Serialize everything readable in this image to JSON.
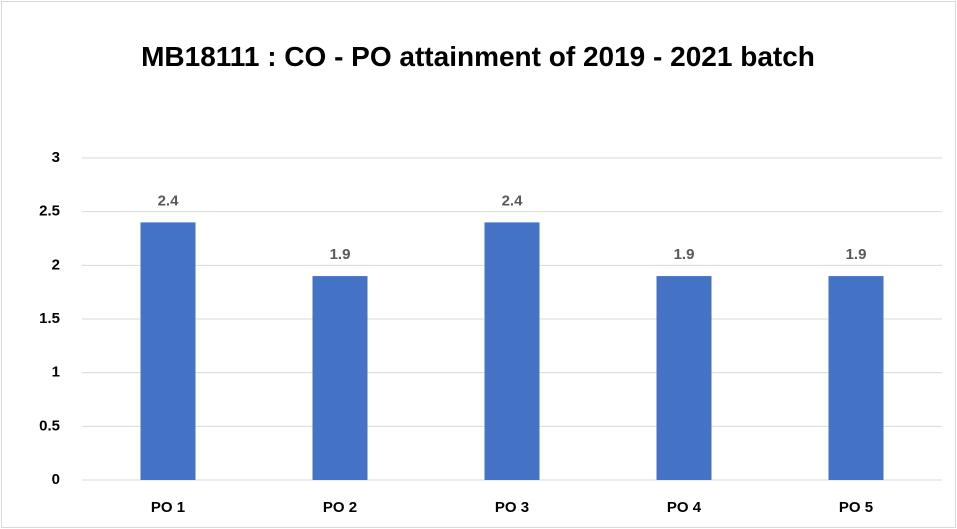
{
  "chart_data": {
    "type": "bar",
    "title": "MB18111 : CO - PO attainment of 2019 - 2021 batch",
    "categories": [
      "PO 1",
      "PO 2",
      "PO 3",
      "PO 4",
      "PO 5"
    ],
    "values": [
      2.4,
      1.9,
      2.4,
      1.9,
      1.9
    ],
    "color": "#4472c4",
    "ylim": [
      0,
      3
    ],
    "yticks": [
      0,
      0.5,
      1,
      1.5,
      2,
      2.5,
      3
    ],
    "grid": true
  }
}
